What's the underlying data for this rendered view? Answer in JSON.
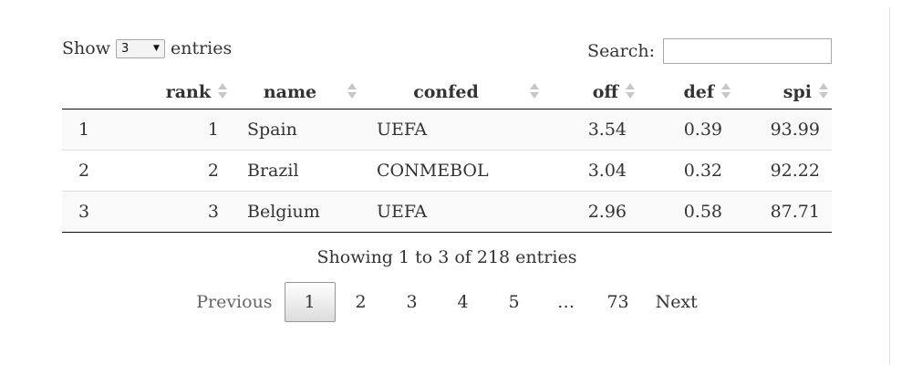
{
  "length_menu": {
    "prefix": "Show",
    "selected": "3",
    "suffix": "entries"
  },
  "search": {
    "label": "Search:",
    "value": ""
  },
  "table": {
    "columns": [
      "",
      "rank",
      "name",
      "confed",
      "off",
      "def",
      "spi"
    ],
    "rows": [
      [
        "1",
        "1",
        "Spain",
        "UEFA",
        "3.54",
        "0.39",
        "93.99"
      ],
      [
        "2",
        "2",
        "Brazil",
        "CONMEBOL",
        "3.04",
        "0.32",
        "92.22"
      ],
      [
        "3",
        "3",
        "Belgium",
        "UEFA",
        "2.96",
        "0.58",
        "87.71"
      ]
    ]
  },
  "info": "Showing 1 to 3 of 218 entries",
  "pagination": {
    "previous": "Previous",
    "pages": [
      "1",
      "2",
      "3",
      "4",
      "5"
    ],
    "ellipsis": "…",
    "last": "73",
    "next": "Next",
    "current": "1"
  }
}
